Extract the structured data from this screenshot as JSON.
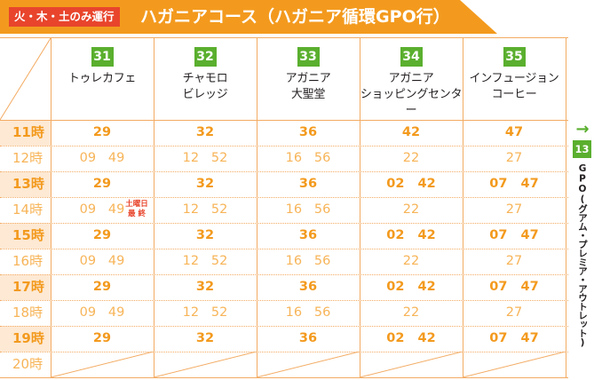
{
  "header": {
    "tag": "火・木・土のみ運行",
    "title": "ハガニアコース（ハガニア循環GPO行）"
  },
  "stops": [
    {
      "number": "31",
      "name": "トゥレカフェ"
    },
    {
      "number": "32",
      "name": "チャモロ\nビレッジ"
    },
    {
      "number": "33",
      "name": "アガニア\n大聖堂"
    },
    {
      "number": "34",
      "name": "アガニア\nショッピングセンター"
    },
    {
      "number": "35",
      "name": "インフュージョン\nコーヒー"
    }
  ],
  "hours": [
    "11時",
    "12時",
    "13時",
    "14時",
    "15時",
    "16時",
    "17時",
    "18時",
    "19時",
    "20時"
  ],
  "times": [
    [
      "29",
      "32",
      "36",
      "42",
      "47"
    ],
    [
      "09   49",
      "12   52",
      "16   56",
      "22",
      "27"
    ],
    [
      "29",
      "32",
      "36",
      "02   42",
      "07   47"
    ],
    [
      "09   49",
      "12   52",
      "16   56",
      "22",
      "27"
    ],
    [
      "29",
      "32",
      "36",
      "02   42",
      "07   47"
    ],
    [
      "09   49",
      "12   52",
      "16   56",
      "22",
      "27"
    ],
    [
      "29",
      "32",
      "36",
      "02   42",
      "07   47"
    ],
    [
      "09   49",
      "12   52",
      "16   56",
      "22",
      "27"
    ],
    [
      "29",
      "32",
      "36",
      "02   42",
      "07   47"
    ],
    [
      "",
      "",
      "",
      "",
      ""
    ]
  ],
  "note": {
    "line1": "土曜日",
    "line2": "最 終"
  },
  "destination": {
    "arrow": "→",
    "number": "13",
    "name": "GPO(グアム・プレミア・アウトレット)"
  },
  "colors": {
    "header": "#f39a1e",
    "tag": "#e8452c",
    "stop_badge": "#5aaf2e",
    "grid": "#f3ab63",
    "hour_band": "#fde9d4"
  }
}
